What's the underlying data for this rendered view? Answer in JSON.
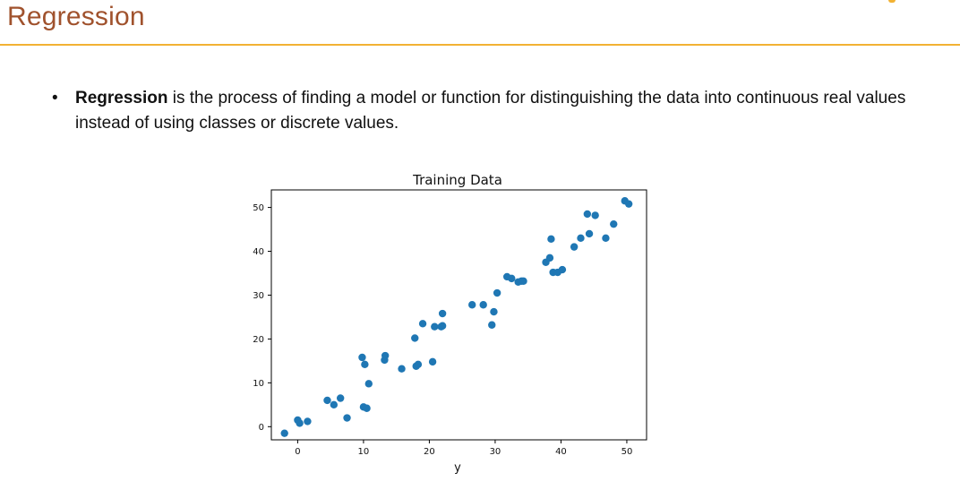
{
  "slide": {
    "title": "Regression",
    "bullet": {
      "marker": "•",
      "bold_term": "Regression",
      "rest": " is the process of finding a model or function for distinguishing the data into continuous real values instead of using classes or discrete values."
    }
  },
  "colors": {
    "title": "#a0522d",
    "rule": "#f2b233",
    "point": "#1f77b4"
  },
  "chart_data": {
    "type": "scatter",
    "title": "Training Data",
    "xlabel": "y",
    "ylabel": "",
    "xlim": [
      -4,
      53
    ],
    "ylim": [
      -3,
      54
    ],
    "xticks": [
      0,
      10,
      20,
      30,
      40,
      50
    ],
    "yticks": [
      0,
      10,
      20,
      30,
      40,
      50
    ],
    "grid": false,
    "points": [
      [
        -2,
        -1.5
      ],
      [
        0,
        1.5
      ],
      [
        0.3,
        0.8
      ],
      [
        1.5,
        1.2
      ],
      [
        4.5,
        6
      ],
      [
        5.5,
        5
      ],
      [
        6.5,
        6.5
      ],
      [
        7.5,
        2
      ],
      [
        9.8,
        15.8
      ],
      [
        10,
        4.5
      ],
      [
        10.2,
        14.2
      ],
      [
        10.5,
        4.2
      ],
      [
        10.8,
        9.8
      ],
      [
        13.2,
        15.2
      ],
      [
        13.3,
        16.2
      ],
      [
        15.8,
        13.2
      ],
      [
        17.8,
        20.2
      ],
      [
        18,
        13.8
      ],
      [
        18.3,
        14.2
      ],
      [
        19,
        23.5
      ],
      [
        20.5,
        14.8
      ],
      [
        20.8,
        22.8
      ],
      [
        21.8,
        22.8
      ],
      [
        22,
        23
      ],
      [
        22,
        25.8
      ],
      [
        26.5,
        27.8
      ],
      [
        28.2,
        27.8
      ],
      [
        29.5,
        23.2
      ],
      [
        29.8,
        26.2
      ],
      [
        30.3,
        30.5
      ],
      [
        31.8,
        34.2
      ],
      [
        32.5,
        33.8
      ],
      [
        33.5,
        33
      ],
      [
        34,
        33.2
      ],
      [
        34.3,
        33.2
      ],
      [
        37.7,
        37.5
      ],
      [
        38.3,
        38.5
      ],
      [
        38.5,
        42.8
      ],
      [
        38.8,
        35.2
      ],
      [
        39.5,
        35.2
      ],
      [
        40.2,
        35.8
      ],
      [
        42,
        41
      ],
      [
        43,
        43
      ],
      [
        44,
        48.5
      ],
      [
        44.3,
        44
      ],
      [
        45.2,
        48.2
      ],
      [
        46.8,
        43
      ],
      [
        48,
        46.2
      ],
      [
        49.7,
        51.5
      ],
      [
        50.3,
        50.8
      ]
    ]
  }
}
